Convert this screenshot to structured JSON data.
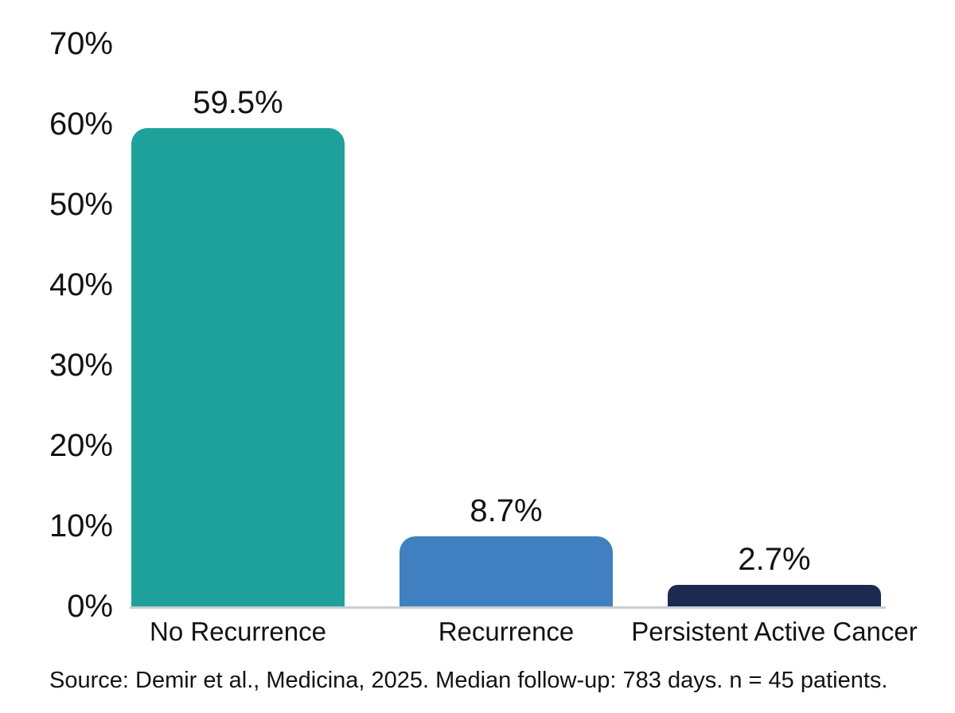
{
  "chart_data": {
    "type": "bar",
    "title": "",
    "xlabel": "",
    "ylabel": "",
    "categories": [
      "No Recurrence",
      "Recurrence",
      "Persistent Active Cancer"
    ],
    "values": [
      59.5,
      8.7,
      2.7
    ],
    "value_labels": [
      "59.5%",
      "8.7%",
      "2.7%"
    ],
    "bar_colors": [
      "#1ea19a",
      "#4180c0",
      "#1b2a4e"
    ],
    "yticks": [
      0,
      10,
      20,
      30,
      40,
      50,
      60,
      70
    ],
    "ytick_labels": [
      "0%",
      "10%",
      "20%",
      "30%",
      "40%",
      "50%",
      "60%",
      "70%"
    ],
    "ylim": [
      0,
      70
    ],
    "grid": false,
    "legend": false
  },
  "source_note": "Source: Demir et al., Medicina, 2025. Median follow-up: 783 days. n = 45 patients.",
  "colors": {
    "background": "#ffffff",
    "text": "#131313",
    "axis_line": "#c9cdd2"
  }
}
